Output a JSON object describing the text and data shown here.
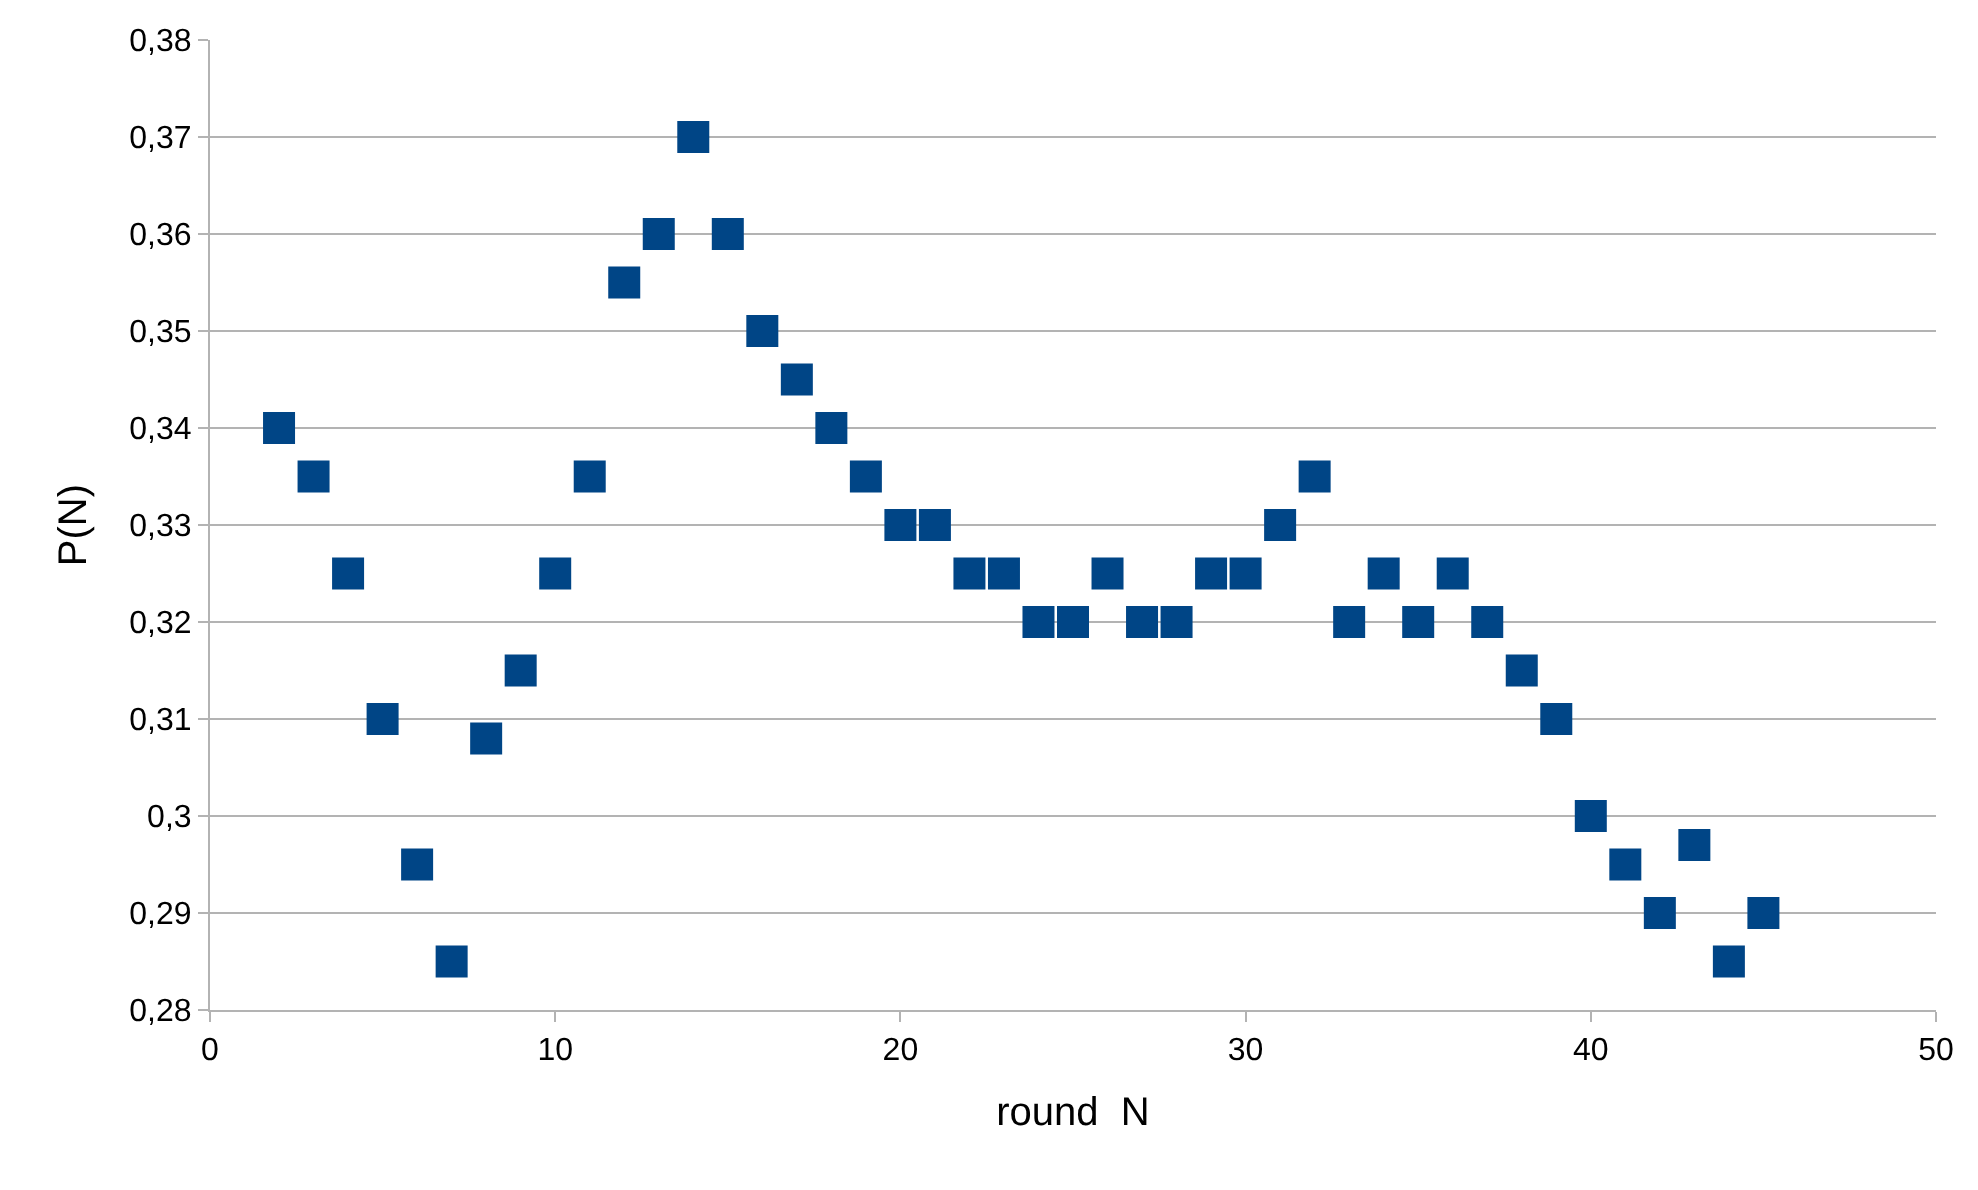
{
  "chart_data": {
    "type": "scatter",
    "xlabel": "round  N",
    "ylabel": "P(N)",
    "x": [
      2,
      3,
      4,
      5,
      6,
      7,
      8,
      9,
      10,
      11,
      12,
      13,
      14,
      15,
      16,
      17,
      18,
      19,
      20,
      21,
      22,
      23,
      24,
      25,
      26,
      27,
      28,
      29,
      30,
      31,
      32,
      33,
      34,
      35,
      36,
      37,
      38,
      39,
      40,
      41,
      42,
      43,
      44,
      45
    ],
    "series": [
      {
        "color": "#004586",
        "values": [
          0.34,
          0.335,
          0.325,
          0.31,
          0.295,
          0.285,
          0.308,
          0.315,
          0.325,
          0.335,
          0.355,
          0.36,
          0.37,
          0.36,
          0.35,
          0.345,
          0.34,
          0.335,
          0.33,
          0.33,
          0.325,
          0.325,
          0.32,
          0.32,
          0.325,
          0.32,
          0.32,
          0.325,
          0.325,
          0.33,
          0.335,
          0.32,
          0.325,
          0.32,
          0.325,
          0.32,
          0.315,
          0.31,
          0.3,
          0.295,
          0.29,
          0.297,
          0.285,
          0.29
        ]
      }
    ],
    "xlim": [
      0,
      50
    ],
    "xticks": [
      0,
      10,
      20,
      30,
      40,
      50
    ],
    "ylim": [
      0.28,
      0.38
    ],
    "yticks": [
      {
        "value": 0.28,
        "label": "0,28"
      },
      {
        "value": 0.29,
        "label": "0,29"
      },
      {
        "value": 0.3,
        "label": "0,3"
      },
      {
        "value": 0.31,
        "label": "0,31"
      },
      {
        "value": 0.32,
        "label": "0,32"
      },
      {
        "value": 0.33,
        "label": "0,33"
      },
      {
        "value": 0.34,
        "label": "0,34"
      },
      {
        "value": 0.35,
        "label": "0,35"
      },
      {
        "value": 0.36,
        "label": "0,36"
      },
      {
        "value": 0.37,
        "label": "0,37"
      },
      {
        "value": 0.38,
        "label": "0,38"
      }
    ],
    "grid": "y",
    "marker": "square"
  }
}
